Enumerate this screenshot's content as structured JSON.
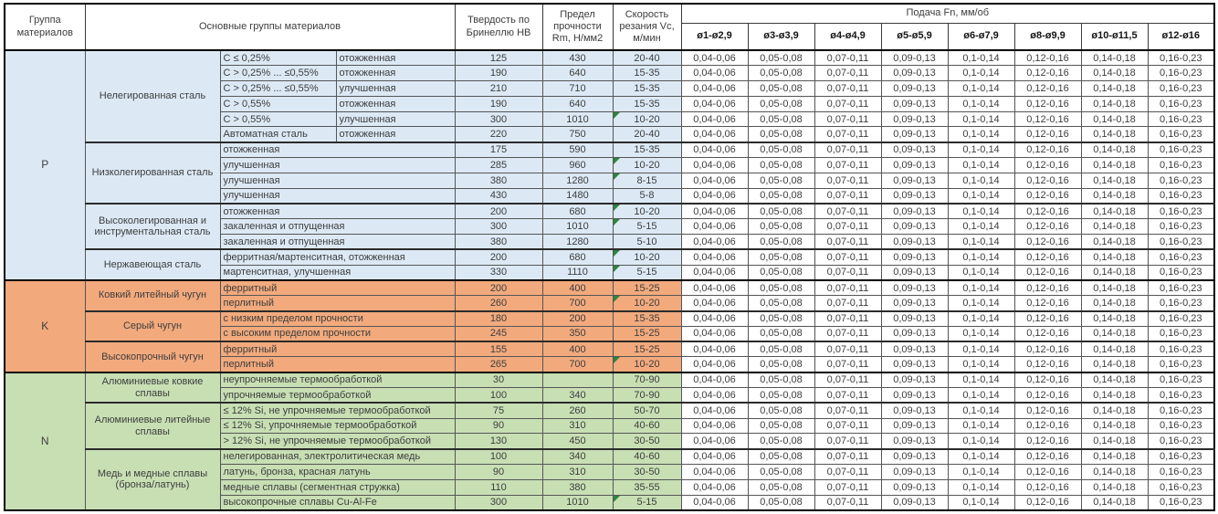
{
  "colors": {
    "group_p": "#dce9f5",
    "group_k": "#f2aa7d",
    "group_n": "#c8dfb4",
    "note_triangle": "#2e8540",
    "grid_line": "#555555",
    "section_line": "#000000"
  },
  "table": {
    "headers": {
      "group": "Группа материалов",
      "main_groups": "Основные группы материалов",
      "hardness": "Твердость по Бринеллю HB",
      "strength": "Предел прочности Rm, Н/мм2",
      "speed": "Скорость резания Vc, м/мин",
      "feed": "Подача Fn, мм/об",
      "diameters": [
        "ø1-ø2,9",
        "ø3-ø3,9",
        "ø4-ø4,9",
        "ø5-ø5,9",
        "ø6-ø7,9",
        "ø8-ø9,9",
        "ø10-ø11,5",
        "ø12-ø16"
      ]
    },
    "feed_values": [
      "0,04-0,06",
      "0,05-0,08",
      "0,07-0,11",
      "0,09-0,13",
      "0,1-0,14",
      "0,12-0,16",
      "0,14-0,18",
      "0,16-0,23"
    ],
    "groups": [
      {
        "letter": "P",
        "color": "#dce9f5",
        "subgroups": [
          {
            "name": "Нелегированная сталь",
            "rows": [
              {
                "cols": [
                  "C ≤ 0,25%",
                  "отожженная"
                ],
                "hb": "125",
                "rm": "430",
                "vc": "20-40",
                "note": false
              },
              {
                "cols": [
                  "C > 0,25% ... ≤0,55%",
                  "отожженная"
                ],
                "hb": "190",
                "rm": "640",
                "vc": "15-35",
                "note": false
              },
              {
                "cols": [
                  "C > 0,25% ... ≤0,55%",
                  "улучшенная"
                ],
                "hb": "210",
                "rm": "710",
                "vc": "15-35",
                "note": false
              },
              {
                "cols": [
                  "C > 0,55%",
                  "отожженная"
                ],
                "hb": "190",
                "rm": "640",
                "vc": "15-35",
                "note": false
              },
              {
                "cols": [
                  "C > 0,55%",
                  "улучшенная"
                ],
                "hb": "300",
                "rm": "1010",
                "vc": "10-20",
                "note": true
              },
              {
                "cols": [
                  "Автоматная сталь",
                  "отожженная"
                ],
                "hb": "220",
                "rm": "750",
                "vc": "20-40",
                "note": false
              }
            ]
          },
          {
            "name": "Низколегированная сталь",
            "rows": [
              {
                "cols": [
                  "отожженная"
                ],
                "hb": "175",
                "rm": "590",
                "vc": "15-35",
                "note": false
              },
              {
                "cols": [
                  "улучшенная"
                ],
                "hb": "285",
                "rm": "960",
                "vc": "10-20",
                "note": true
              },
              {
                "cols": [
                  "улучшенная"
                ],
                "hb": "380",
                "rm": "1280",
                "vc": "8-15",
                "note": true
              },
              {
                "cols": [
                  "улучшенная"
                ],
                "hb": "430",
                "rm": "1480",
                "vc": "5-8",
                "note": false
              }
            ]
          },
          {
            "name": "Высоколегированная и инструментальная сталь",
            "rows": [
              {
                "cols": [
                  "отожженная"
                ],
                "hb": "200",
                "rm": "680",
                "vc": "10-20",
                "note": true
              },
              {
                "cols": [
                  "закаленная и отпущенная"
                ],
                "hb": "300",
                "rm": "1010",
                "vc": "5-15",
                "note": true
              },
              {
                "cols": [
                  "закаленная и отпущенная"
                ],
                "hb": "380",
                "rm": "1280",
                "vc": "5-10",
                "note": false
              }
            ]
          },
          {
            "name": "Нержавеющая сталь",
            "rows": [
              {
                "cols": [
                  "ферритная/мартенситная, отожженная"
                ],
                "hb": "200",
                "rm": "680",
                "vc": "10-20",
                "note": true
              },
              {
                "cols": [
                  "мартенситная, улучшенная"
                ],
                "hb": "330",
                "rm": "1110",
                "vc": "5-15",
                "note": true
              }
            ]
          }
        ]
      },
      {
        "letter": "K",
        "color": "#f2aa7d",
        "subgroups": [
          {
            "name": "Ковкий литейный чугун",
            "rows": [
              {
                "cols": [
                  "ферритный"
                ],
                "hb": "200",
                "rm": "400",
                "vc": "15-25",
                "note": false
              },
              {
                "cols": [
                  "перлитный"
                ],
                "hb": "260",
                "rm": "700",
                "vc": "10-20",
                "note": true
              }
            ]
          },
          {
            "name": "Серый чугун",
            "rows": [
              {
                "cols": [
                  "с низким пределом прочности"
                ],
                "hb": "180",
                "rm": "200",
                "vc": "15-35",
                "note": false
              },
              {
                "cols": [
                  "с высоким пределом прочности"
                ],
                "hb": "245",
                "rm": "350",
                "vc": "15-25",
                "note": false
              }
            ]
          },
          {
            "name": "Высокопрочный чугун",
            "rows": [
              {
                "cols": [
                  "ферритный"
                ],
                "hb": "155",
                "rm": "400",
                "vc": "15-25",
                "note": false
              },
              {
                "cols": [
                  "перлитный"
                ],
                "hb": "265",
                "rm": "700",
                "vc": "10-20",
                "note": true
              }
            ]
          }
        ]
      },
      {
        "letter": "N",
        "color": "#c8dfb4",
        "subgroups": [
          {
            "name": "Алюминиевые ковкие сплавы",
            "rows": [
              {
                "cols": [
                  "неупрочняемые термообработкой"
                ],
                "hb": "30",
                "rm": "",
                "vc": "70-90",
                "note": false
              },
              {
                "cols": [
                  "упрочняемые термообработкой"
                ],
                "hb": "100",
                "rm": "340",
                "vc": "70-90",
                "note": false
              }
            ]
          },
          {
            "name": "Алюминиевые литейные сплавы",
            "rows": [
              {
                "cols": [
                  "≤ 12% Si, не упрочняемые термообработкой"
                ],
                "hb": "75",
                "rm": "260",
                "vc": "50-70",
                "note": false
              },
              {
                "cols": [
                  "≤ 12% Si, упрочняемые термообработкой"
                ],
                "hb": "90",
                "rm": "310",
                "vc": "40-60",
                "note": false
              },
              {
                "cols": [
                  "> 12% Si, не упрочняемые термообработкой"
                ],
                "hb": "130",
                "rm": "450",
                "vc": "30-50",
                "note": false
              }
            ]
          },
          {
            "name": "Медь и медные сплавы (бронза/латунь)",
            "rows": [
              {
                "cols": [
                  "нелегированная, электролитическая медь"
                ],
                "hb": "100",
                "rm": "340",
                "vc": "40-60",
                "note": false
              },
              {
                "cols": [
                  "латунь, бронза, красная латунь"
                ],
                "hb": "90",
                "rm": "310",
                "vc": "30-50",
                "note": false
              },
              {
                "cols": [
                  "медные сплавы (сегментная стружка)"
                ],
                "hb": "110",
                "rm": "380",
                "vc": "35-55",
                "note": false
              },
              {
                "cols": [
                  "высокопрочные сплавы Cu-Al-Fe"
                ],
                "hb": "300",
                "rm": "1010",
                "vc": "5-15",
                "note": true
              }
            ]
          }
        ]
      }
    ]
  }
}
